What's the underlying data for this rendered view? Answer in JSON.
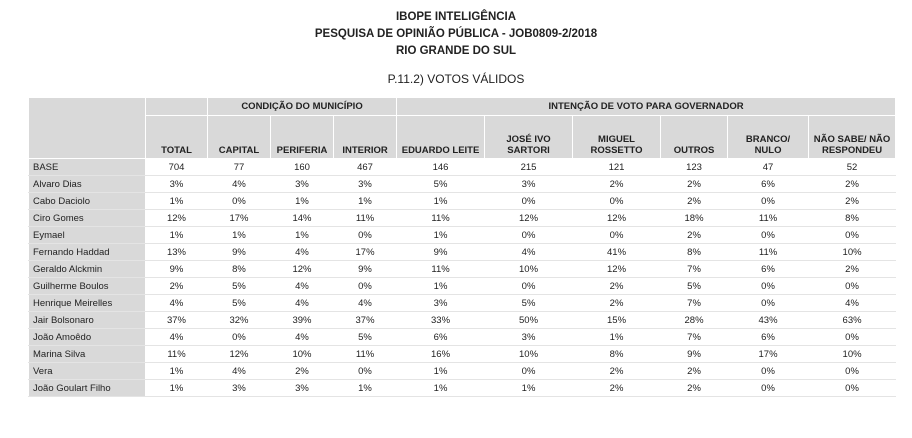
{
  "header": {
    "lines": [
      "IBOPE INTELIGÊNCIA",
      "PESQUISA DE OPINIÃO PÚBLICA - JOB0809-2/2018",
      "RIO GRANDE DO SUL"
    ],
    "subtitle": "P.11.2) VOTOS VÁLIDOS"
  },
  "table": {
    "groups": [
      "CONDIÇÃO DO MUNICÍPIO",
      "INTENÇÃO DE VOTO PARA GOVERNADOR"
    ],
    "columns": [
      "TOTAL",
      "CAPITAL",
      "PERIFERIA",
      "INTERIOR",
      "EDUARDO LEITE",
      "JOSÉ IVO SARTORI",
      "MIGUEL ROSSETTO",
      "OUTROS",
      "BRANCO/ NULO",
      "NÃO SABE/ NÃO RESPONDEU"
    ],
    "rows": [
      {
        "label": "BASE",
        "values": [
          "704",
          "77",
          "160",
          "467",
          "146",
          "215",
          "121",
          "123",
          "47",
          "52"
        ]
      },
      {
        "label": "Alvaro Dias",
        "values": [
          "3%",
          "4%",
          "3%",
          "3%",
          "5%",
          "3%",
          "2%",
          "2%",
          "6%",
          "2%"
        ]
      },
      {
        "label": "Cabo Daciolo",
        "values": [
          "1%",
          "0%",
          "1%",
          "1%",
          "1%",
          "0%",
          "0%",
          "2%",
          "0%",
          "2%"
        ]
      },
      {
        "label": "Ciro Gomes",
        "values": [
          "12%",
          "17%",
          "14%",
          "11%",
          "11%",
          "12%",
          "12%",
          "18%",
          "11%",
          "8%"
        ]
      },
      {
        "label": "Eymael",
        "values": [
          "1%",
          "1%",
          "1%",
          "0%",
          "1%",
          "0%",
          "0%",
          "2%",
          "0%",
          "0%"
        ]
      },
      {
        "label": "Fernando Haddad",
        "values": [
          "13%",
          "9%",
          "4%",
          "17%",
          "9%",
          "4%",
          "41%",
          "8%",
          "11%",
          "10%"
        ]
      },
      {
        "label": "Geraldo Alckmin",
        "values": [
          "9%",
          "8%",
          "12%",
          "9%",
          "11%",
          "10%",
          "12%",
          "7%",
          "6%",
          "2%"
        ]
      },
      {
        "label": "Guilherme Boulos",
        "values": [
          "2%",
          "5%",
          "4%",
          "0%",
          "1%",
          "0%",
          "2%",
          "5%",
          "0%",
          "0%"
        ]
      },
      {
        "label": "Henrique Meirelles",
        "values": [
          "4%",
          "5%",
          "4%",
          "4%",
          "3%",
          "5%",
          "2%",
          "7%",
          "0%",
          "4%"
        ]
      },
      {
        "label": "Jair Bolsonaro",
        "values": [
          "37%",
          "32%",
          "39%",
          "37%",
          "33%",
          "50%",
          "15%",
          "28%",
          "43%",
          "63%"
        ]
      },
      {
        "label": "João Amoêdo",
        "values": [
          "4%",
          "0%",
          "4%",
          "5%",
          "6%",
          "3%",
          "1%",
          "7%",
          "6%",
          "0%"
        ]
      },
      {
        "label": "Marina Silva",
        "values": [
          "11%",
          "12%",
          "10%",
          "11%",
          "16%",
          "10%",
          "8%",
          "9%",
          "17%",
          "10%"
        ]
      },
      {
        "label": "Vera",
        "values": [
          "1%",
          "4%",
          "2%",
          "0%",
          "1%",
          "0%",
          "2%",
          "2%",
          "0%",
          "0%"
        ]
      },
      {
        "label": "João Goulart Filho",
        "values": [
          "1%",
          "3%",
          "3%",
          "1%",
          "1%",
          "1%",
          "2%",
          "2%",
          "0%",
          "0%"
        ]
      }
    ]
  }
}
